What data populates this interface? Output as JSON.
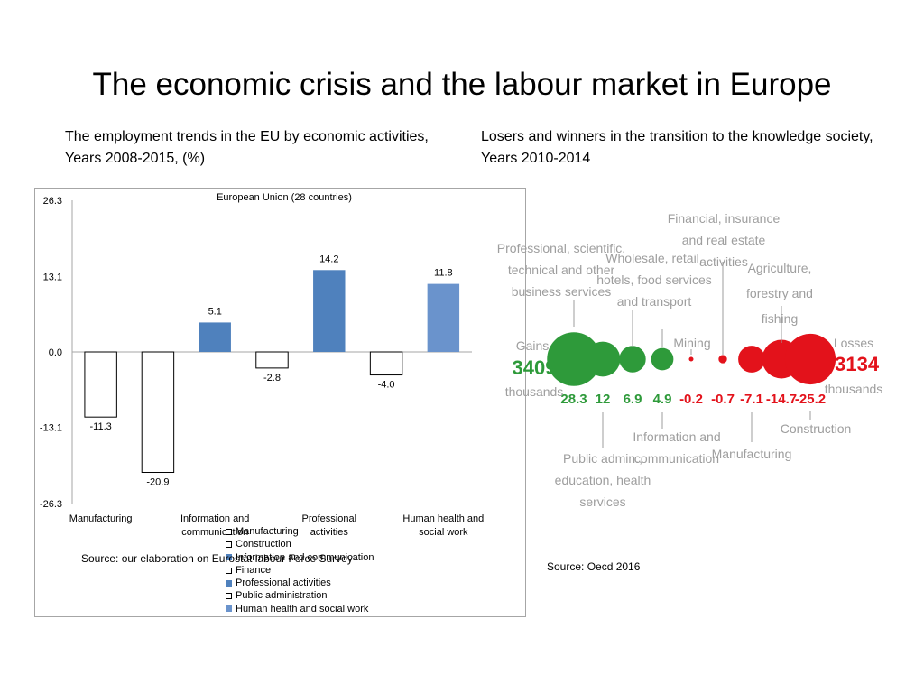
{
  "slide": {
    "title": "The economic crisis and the labour market in Europe",
    "left_subtitle": "The employment trends in the EU by economic activities, Years 2008-2015, (%)",
    "right_subtitle": "Losers and winners in the transition to the knowledge society, Years 2010-2014",
    "left_source": "Source: our elaboration on Eurostat labour Force Survey",
    "right_source": "Source: Oecd 2016"
  },
  "colors": {
    "positive_dark": "#4f81bd",
    "positive_light": "#6a93cc",
    "negative_fill": "#ffffff",
    "gains": "#2e9a3a",
    "losses": "#e3121b",
    "label_grey": "#9e9e9e"
  },
  "chart_data": [
    {
      "type": "bar",
      "title": "European Union (28 countries)",
      "categories": [
        "Manufacturing",
        "Construction",
        "Information and communication",
        "Finance",
        "Professional activities",
        "Public administration",
        "Human health and social work"
      ],
      "x_tick_labels": [
        "Manufacturing",
        "Information and communication",
        "Professional activities",
        "Human health and social work"
      ],
      "values": [
        -11.3,
        -20.9,
        5.1,
        -2.8,
        14.2,
        -4.0,
        11.8
      ],
      "value_labels": [
        "-11.3",
        "-20.9",
        "5.1",
        "-2.8",
        "14.2",
        "-4.0",
        "11.8"
      ],
      "bar_fills": [
        "#ffffff",
        "#ffffff",
        "#4f81bd",
        "#ffffff",
        "#4f81bd",
        "#ffffff",
        "#6a93cc"
      ],
      "yticks": [
        "26.3",
        "13.1",
        "0.0",
        "-13.1",
        "-26.3"
      ],
      "ylim": [
        -26.3,
        26.3
      ],
      "grid": false,
      "legend": {
        "placement": "bottom",
        "entries": [
          "Manufacturing",
          "Construction",
          "Information and communication",
          "Finance",
          "Professional activities",
          "Public administration",
          "Human health and social work"
        ]
      }
    },
    {
      "type": "scatter",
      "description_type": "bubble",
      "values": [
        28.3,
        12,
        6.9,
        4.9,
        -0.2,
        -0.7,
        -7.1,
        -14.7,
        -25.2
      ],
      "value_labels": [
        "28.3",
        "12",
        "6.9",
        "4.9",
        "-0.2",
        "-0.7",
        "-7.1",
        "-14.7",
        "-25.2"
      ],
      "gains": {
        "label": "Gains",
        "value": "3409",
        "unit": "thousands"
      },
      "losses": {
        "label": "Losses",
        "value": "-3134",
        "unit": "thousands"
      },
      "annotations_top": [
        "Professional, scientific, technical and other business services",
        "Wholesale, retail, hotels, food services and transport",
        "Financial, insurance and real estate activities",
        "Mining",
        "Agriculture, forestry and fishing"
      ],
      "annotations_bottom": [
        "Public admin., education, health services",
        "Information and communication",
        "Manufacturing",
        "Construction"
      ]
    }
  ]
}
